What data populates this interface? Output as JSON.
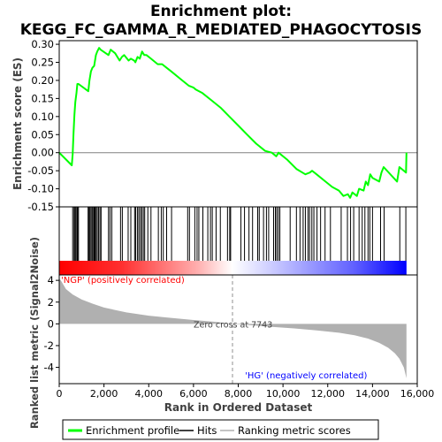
{
  "chart_data": [
    {
      "type": "line",
      "title": "Enrichment plot:\nKEGG_FC_GAMMA_R_MEDIATED_PHAGOCYTOSIS",
      "title_lines": [
        "Enrichment plot:",
        "KEGG_FC_GAMMA_R_MEDIATED_PHAGOCYTOSIS"
      ],
      "ylabel": "Enrichment score (ES)",
      "ylim": [
        -0.15,
        0.31
      ],
      "xlim": [
        0,
        16000
      ],
      "yticks": [
        -0.15,
        -0.1,
        -0.05,
        0.0,
        0.05,
        0.1,
        0.15,
        0.2,
        0.25,
        0.3
      ],
      "ytick_labels": [
        "-0.15",
        "-0.10",
        "-0.05",
        "0.00",
        "0.05",
        "0.10",
        "0.15",
        "0.20",
        "0.25",
        "0.30"
      ],
      "series": [
        {
          "name": "Enrichment profile",
          "color": "#00ff00",
          "x": [
            0,
            560,
            600,
            640,
            680,
            720,
            770,
            810,
            860,
            1300,
            1350,
            1420,
            1480,
            1560,
            1640,
            1700,
            1780,
            1850,
            2200,
            2300,
            2500,
            2700,
            2800,
            2900,
            3100,
            3200,
            3350,
            3400,
            3500,
            3600,
            3700,
            3800,
            3900,
            4100,
            4400,
            4600,
            4800,
            5000,
            5500,
            5800,
            6000,
            6100,
            6400,
            6800,
            7200,
            7600,
            8000,
            8400,
            8800,
            9200,
            9500,
            9700,
            9800,
            10200,
            10600,
            11000,
            11200,
            11300,
            11500,
            11900,
            12200,
            12500,
            12700,
            12900,
            13000,
            13100,
            13300,
            13400,
            13600,
            13700,
            13800,
            13900,
            14000,
            14300,
            14400,
            14500,
            15100,
            15200,
            15500,
            15520
          ],
          "y": [
            0.0,
            -0.035,
            -0.005,
            0.055,
            0.105,
            0.14,
            0.165,
            0.19,
            0.19,
            0.17,
            0.2,
            0.225,
            0.235,
            0.24,
            0.27,
            0.28,
            0.29,
            0.285,
            0.27,
            0.285,
            0.275,
            0.255,
            0.265,
            0.27,
            0.255,
            0.26,
            0.255,
            0.25,
            0.265,
            0.26,
            0.28,
            0.27,
            0.27,
            0.26,
            0.245,
            0.245,
            0.235,
            0.225,
            0.2,
            0.185,
            0.18,
            0.175,
            0.165,
            0.145,
            0.125,
            0.1,
            0.075,
            0.05,
            0.025,
            0.005,
            0.0,
            -0.01,
            0.0,
            -0.02,
            -0.045,
            -0.06,
            -0.055,
            -0.05,
            -0.06,
            -0.08,
            -0.095,
            -0.105,
            -0.12,
            -0.115,
            -0.125,
            -0.11,
            -0.12,
            -0.1,
            -0.105,
            -0.08,
            -0.09,
            -0.06,
            -0.07,
            -0.08,
            -0.055,
            -0.04,
            -0.08,
            -0.04,
            -0.055,
            0.0
          ]
        }
      ],
      "grid": false
    },
    {
      "type": "scatter",
      "name": "Hits",
      "xlim": [
        0,
        16000
      ],
      "hits": [
        600,
        660,
        700,
        740,
        790,
        820,
        860,
        1290,
        1330,
        1370,
        1420,
        1470,
        1510,
        1560,
        1600,
        1650,
        1700,
        1760,
        1820,
        1870,
        2200,
        2270,
        2350,
        2740,
        2820,
        3080,
        3200,
        3370,
        3420,
        3500,
        3560,
        3630,
        3690,
        3760,
        3820,
        3960,
        4100,
        4430,
        4560,
        4650,
        4800,
        5020,
        5740,
        5820,
        6060,
        6160,
        6240,
        6420,
        6640,
        6760,
        6840,
        7010,
        7200,
        7520,
        7620,
        7660,
        8120,
        8280,
        8480,
        8640,
        8870,
        8940,
        9130,
        9260,
        9360,
        9580,
        9660,
        9720,
        9790,
        9860,
        10320,
        10600,
        10760,
        10900,
        11000,
        11120,
        11190,
        11290,
        11380,
        11520,
        11680,
        11880,
        12120,
        12600,
        12880,
        13020,
        13160,
        13400,
        13540,
        13660,
        13800,
        13880,
        14000,
        14360,
        14520,
        15220,
        15490
      ]
    },
    {
      "type": "heatmap",
      "name": "Ranking colour bar",
      "xlim": [
        0,
        16000
      ],
      "colors": [
        "#ff0000",
        "#ffffff",
        "#0000ff"
      ]
    },
    {
      "type": "area",
      "ylabel": "Ranked list metric (Signal2Noise)",
      "xlabel": "Rank in Ordered Dataset",
      "xlim": [
        0,
        16000
      ],
      "ylim": [
        -5.5,
        4.5
      ],
      "xticks": [
        0,
        2000,
        4000,
        6000,
        8000,
        10000,
        12000,
        14000,
        16000
      ],
      "xtick_labels": [
        "0",
        "2,000",
        "4,000",
        "6,000",
        "8,000",
        "10,000",
        "12,000",
        "14,000",
        "16,000"
      ],
      "yticks": [
        -4,
        -2,
        0,
        2,
        4
      ],
      "ytick_labels": [
        "-4",
        "-2",
        "0",
        "2",
        "4"
      ],
      "series": [
        {
          "name": "Ranking metric scores",
          "color": "#b0b0b0",
          "x": [
            0,
            100,
            300,
            600,
            1000,
            1500,
            2000,
            3000,
            4000,
            5000,
            6000,
            7000,
            7743,
            8500,
            9500,
            10500,
            11500,
            12500,
            13200,
            13800,
            14300,
            14700,
            15000,
            15200,
            15400,
            15520
          ],
          "y": [
            4.2,
            3.9,
            3.2,
            2.7,
            2.25,
            1.85,
            1.5,
            1.05,
            0.75,
            0.55,
            0.35,
            0.18,
            0.0,
            -0.12,
            -0.28,
            -0.42,
            -0.6,
            -0.82,
            -1.05,
            -1.35,
            -1.75,
            -2.2,
            -2.7,
            -3.2,
            -4.0,
            -5.0
          ]
        }
      ],
      "annotations": [
        {
          "text": "'NGP' (positively correlated)",
          "color": "#ff0000",
          "x": 0,
          "y": "top"
        },
        {
          "text": "Zero cross at 7743",
          "color": "#404040",
          "x": 7743,
          "y": 0
        },
        {
          "text": "'HG' (negatively correlated)",
          "color": "#0000ff",
          "x": 8300,
          "y": "bottom"
        }
      ],
      "zero_cross": 7743
    }
  ],
  "legend": {
    "items": [
      {
        "label": "Enrichment profile",
        "color": "#00ff00",
        "kind": "line"
      },
      {
        "label": "Hits",
        "color": "#000000",
        "kind": "line"
      },
      {
        "label": "Ranking metric scores",
        "color": "#b0b0b0",
        "kind": "line"
      }
    ],
    "placement": "bottom"
  }
}
